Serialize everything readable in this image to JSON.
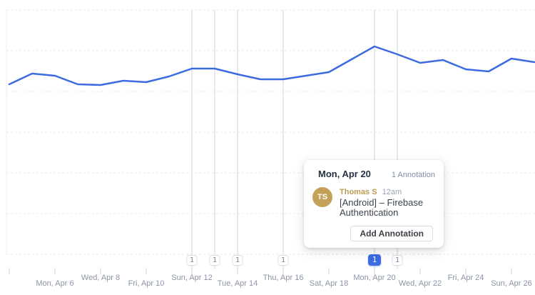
{
  "chart_data": {
    "type": "line",
    "title": "",
    "xlabel": "",
    "ylabel": "",
    "y_axis_labeled": false,
    "grid": true,
    "legend": "none",
    "x": [
      "Apr 4",
      "Apr 5",
      "Apr 6",
      "Apr 7",
      "Apr 8",
      "Apr 9",
      "Apr 10",
      "Apr 11",
      "Apr 12",
      "Apr 13",
      "Apr 14",
      "Apr 15",
      "Apr 16",
      "Apr 17",
      "Apr 18",
      "Apr 19",
      "Apr 20",
      "Apr 21",
      "Apr 22",
      "Apr 23",
      "Apr 24",
      "Apr 25",
      "Apr 26",
      "Apr 27"
    ],
    "values": [
      238,
      253,
      250,
      238,
      237,
      243,
      241,
      249,
      260,
      260,
      252,
      245,
      245,
      250,
      255,
      273,
      291,
      280,
      268,
      272,
      259,
      256,
      274,
      269
    ],
    "x_tick_labels": [
      {
        "label": "Mon, Apr 6",
        "index": 2,
        "row": "bottom"
      },
      {
        "label": "Wed, Apr 8",
        "index": 4,
        "row": "top"
      },
      {
        "label": "Fri, Apr 10",
        "index": 6,
        "row": "bottom"
      },
      {
        "label": "Sun, Apr 12",
        "index": 8,
        "row": "top"
      },
      {
        "label": "Tue, Apr 14",
        "index": 10,
        "row": "bottom"
      },
      {
        "label": "Thu, Apr 16",
        "index": 12,
        "row": "top"
      },
      {
        "label": "Sat, Apr 18",
        "index": 14,
        "row": "bottom"
      },
      {
        "label": "Mon, Apr 20",
        "index": 16,
        "row": "top"
      },
      {
        "label": "Wed, Apr 22",
        "index": 18,
        "row": "bottom"
      },
      {
        "label": "Fri, Apr 24",
        "index": 20,
        "row": "top"
      },
      {
        "label": "Sun, Apr 26",
        "index": 22,
        "row": "bottom"
      }
    ],
    "unlabeled_tick_indexes": [
      0
    ]
  },
  "annotation_markers": [
    {
      "date": "Apr 12",
      "index": 8,
      "count": "1",
      "selected": false
    },
    {
      "date": "Apr 13",
      "index": 9,
      "count": "1",
      "selected": false
    },
    {
      "date": "Apr 14",
      "index": 10,
      "count": "1",
      "selected": false
    },
    {
      "date": "Apr 16",
      "index": 12,
      "count": "1",
      "selected": false
    },
    {
      "date": "Apr 20",
      "index": 16,
      "count": "1",
      "selected": true
    },
    {
      "date": "Apr 21",
      "index": 17,
      "count": "1",
      "selected": false
    }
  ],
  "popover": {
    "date": "Mon, Apr 20",
    "count_label": "1 Annotation",
    "avatar_initials": "TS",
    "author": "Thomas S",
    "time": "12am",
    "text": "[Android] – Firebase Authentication",
    "add_button_label": "Add Annotation"
  },
  "colors": {
    "line": "#3c6be1",
    "selected_marker": "#3d6ce2",
    "avatar": "#c3a159",
    "author_text": "#bd9c57",
    "grid": "#e9e9e9",
    "annotation_line": "#dde2e9",
    "tick": "#ccd2dc",
    "axis_label": "#8b93a6"
  }
}
